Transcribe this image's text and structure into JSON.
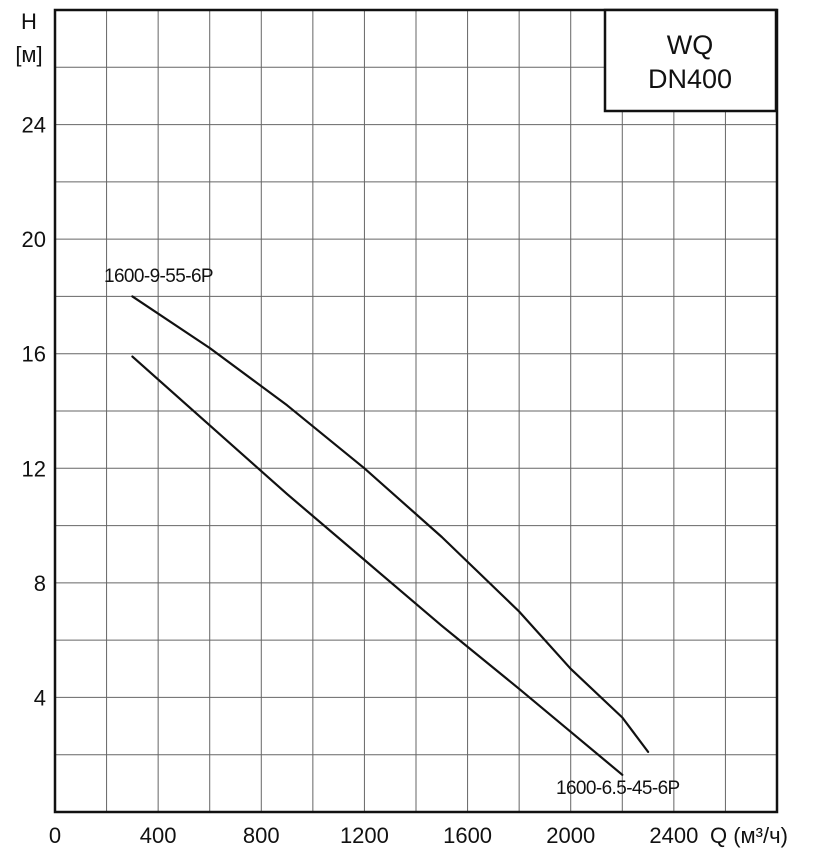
{
  "chart_data": {
    "type": "line",
    "title": "WQ",
    "subtitle": "DN400",
    "xlabel": "Q (м³/ч)",
    "ylabel_line1": "H",
    "ylabel_line2": "[м]",
    "xlim": [
      0,
      2800
    ],
    "ylim": [
      0,
      28
    ],
    "x_ticks": [
      0,
      400,
      800,
      1200,
      1600,
      2000,
      2400
    ],
    "x_tick_labels": [
      "0",
      "400",
      "800",
      "1200",
      "1600",
      "2000",
      "2400"
    ],
    "y_ticks": [
      4,
      8,
      12,
      16,
      20,
      24
    ],
    "y_tick_labels": [
      "4",
      "8",
      "12",
      "16",
      "20",
      "24"
    ],
    "x_grid_step": 200,
    "y_grid_step": 2,
    "grid": true,
    "colors": {
      "line": "#111111",
      "grid": "#666666",
      "frame": "#111111"
    },
    "series": [
      {
        "name": "1600-9-55-6P",
        "x": [
          300,
          600,
          900,
          1200,
          1500,
          1800,
          2000,
          2200,
          2300
        ],
        "y": [
          18.0,
          16.2,
          14.2,
          12.0,
          9.6,
          7.0,
          5.0,
          3.3,
          2.1
        ]
      },
      {
        "name": "1600-6.5-45-6P",
        "x": [
          300,
          600,
          900,
          1200,
          1500,
          1800,
          2000,
          2200
        ],
        "y": [
          15.9,
          13.5,
          11.1,
          8.8,
          6.5,
          4.3,
          2.8,
          1.3
        ]
      }
    ]
  }
}
